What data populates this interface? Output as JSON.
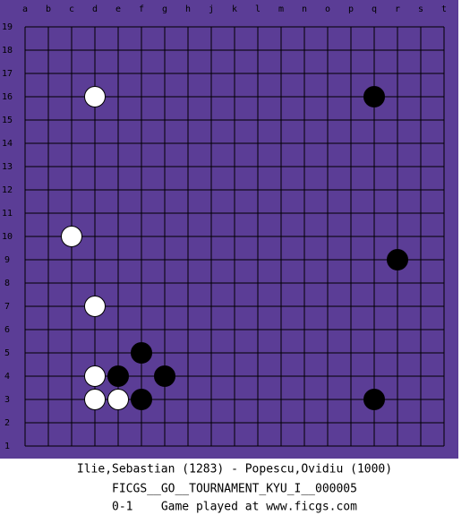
{
  "board": {
    "columns": [
      "a",
      "b",
      "c",
      "d",
      "e",
      "f",
      "g",
      "h",
      "j",
      "k",
      "l",
      "m",
      "n",
      "o",
      "p",
      "q",
      "r",
      "s",
      "t"
    ],
    "rows": [
      19,
      18,
      17,
      16,
      15,
      14,
      13,
      12,
      11,
      10,
      9,
      8,
      7,
      6,
      5,
      4,
      3,
      2,
      1
    ],
    "stones": [
      {
        "color": "white",
        "col": "d",
        "row": 16
      },
      {
        "color": "white",
        "col": "c",
        "row": 10
      },
      {
        "color": "white",
        "col": "d",
        "row": 7
      },
      {
        "color": "white",
        "col": "d",
        "row": 4
      },
      {
        "color": "white",
        "col": "d",
        "row": 3
      },
      {
        "color": "white",
        "col": "e",
        "row": 3
      },
      {
        "color": "black",
        "col": "q",
        "row": 16
      },
      {
        "color": "black",
        "col": "r",
        "row": 9
      },
      {
        "color": "black",
        "col": "f",
        "row": 5
      },
      {
        "color": "black",
        "col": "e",
        "row": 4
      },
      {
        "color": "black",
        "col": "g",
        "row": 4
      },
      {
        "color": "black",
        "col": "f",
        "row": 3
      },
      {
        "color": "black",
        "col": "q",
        "row": 3
      }
    ]
  },
  "footer": {
    "players": "Ilie,Sebastian (1283) - Popescu,Ovidiu (1000)",
    "event": "FICGS__GO__TOURNAMENT_KYU_I__000005",
    "result": "0-1    Game played at www.ficgs.com"
  }
}
